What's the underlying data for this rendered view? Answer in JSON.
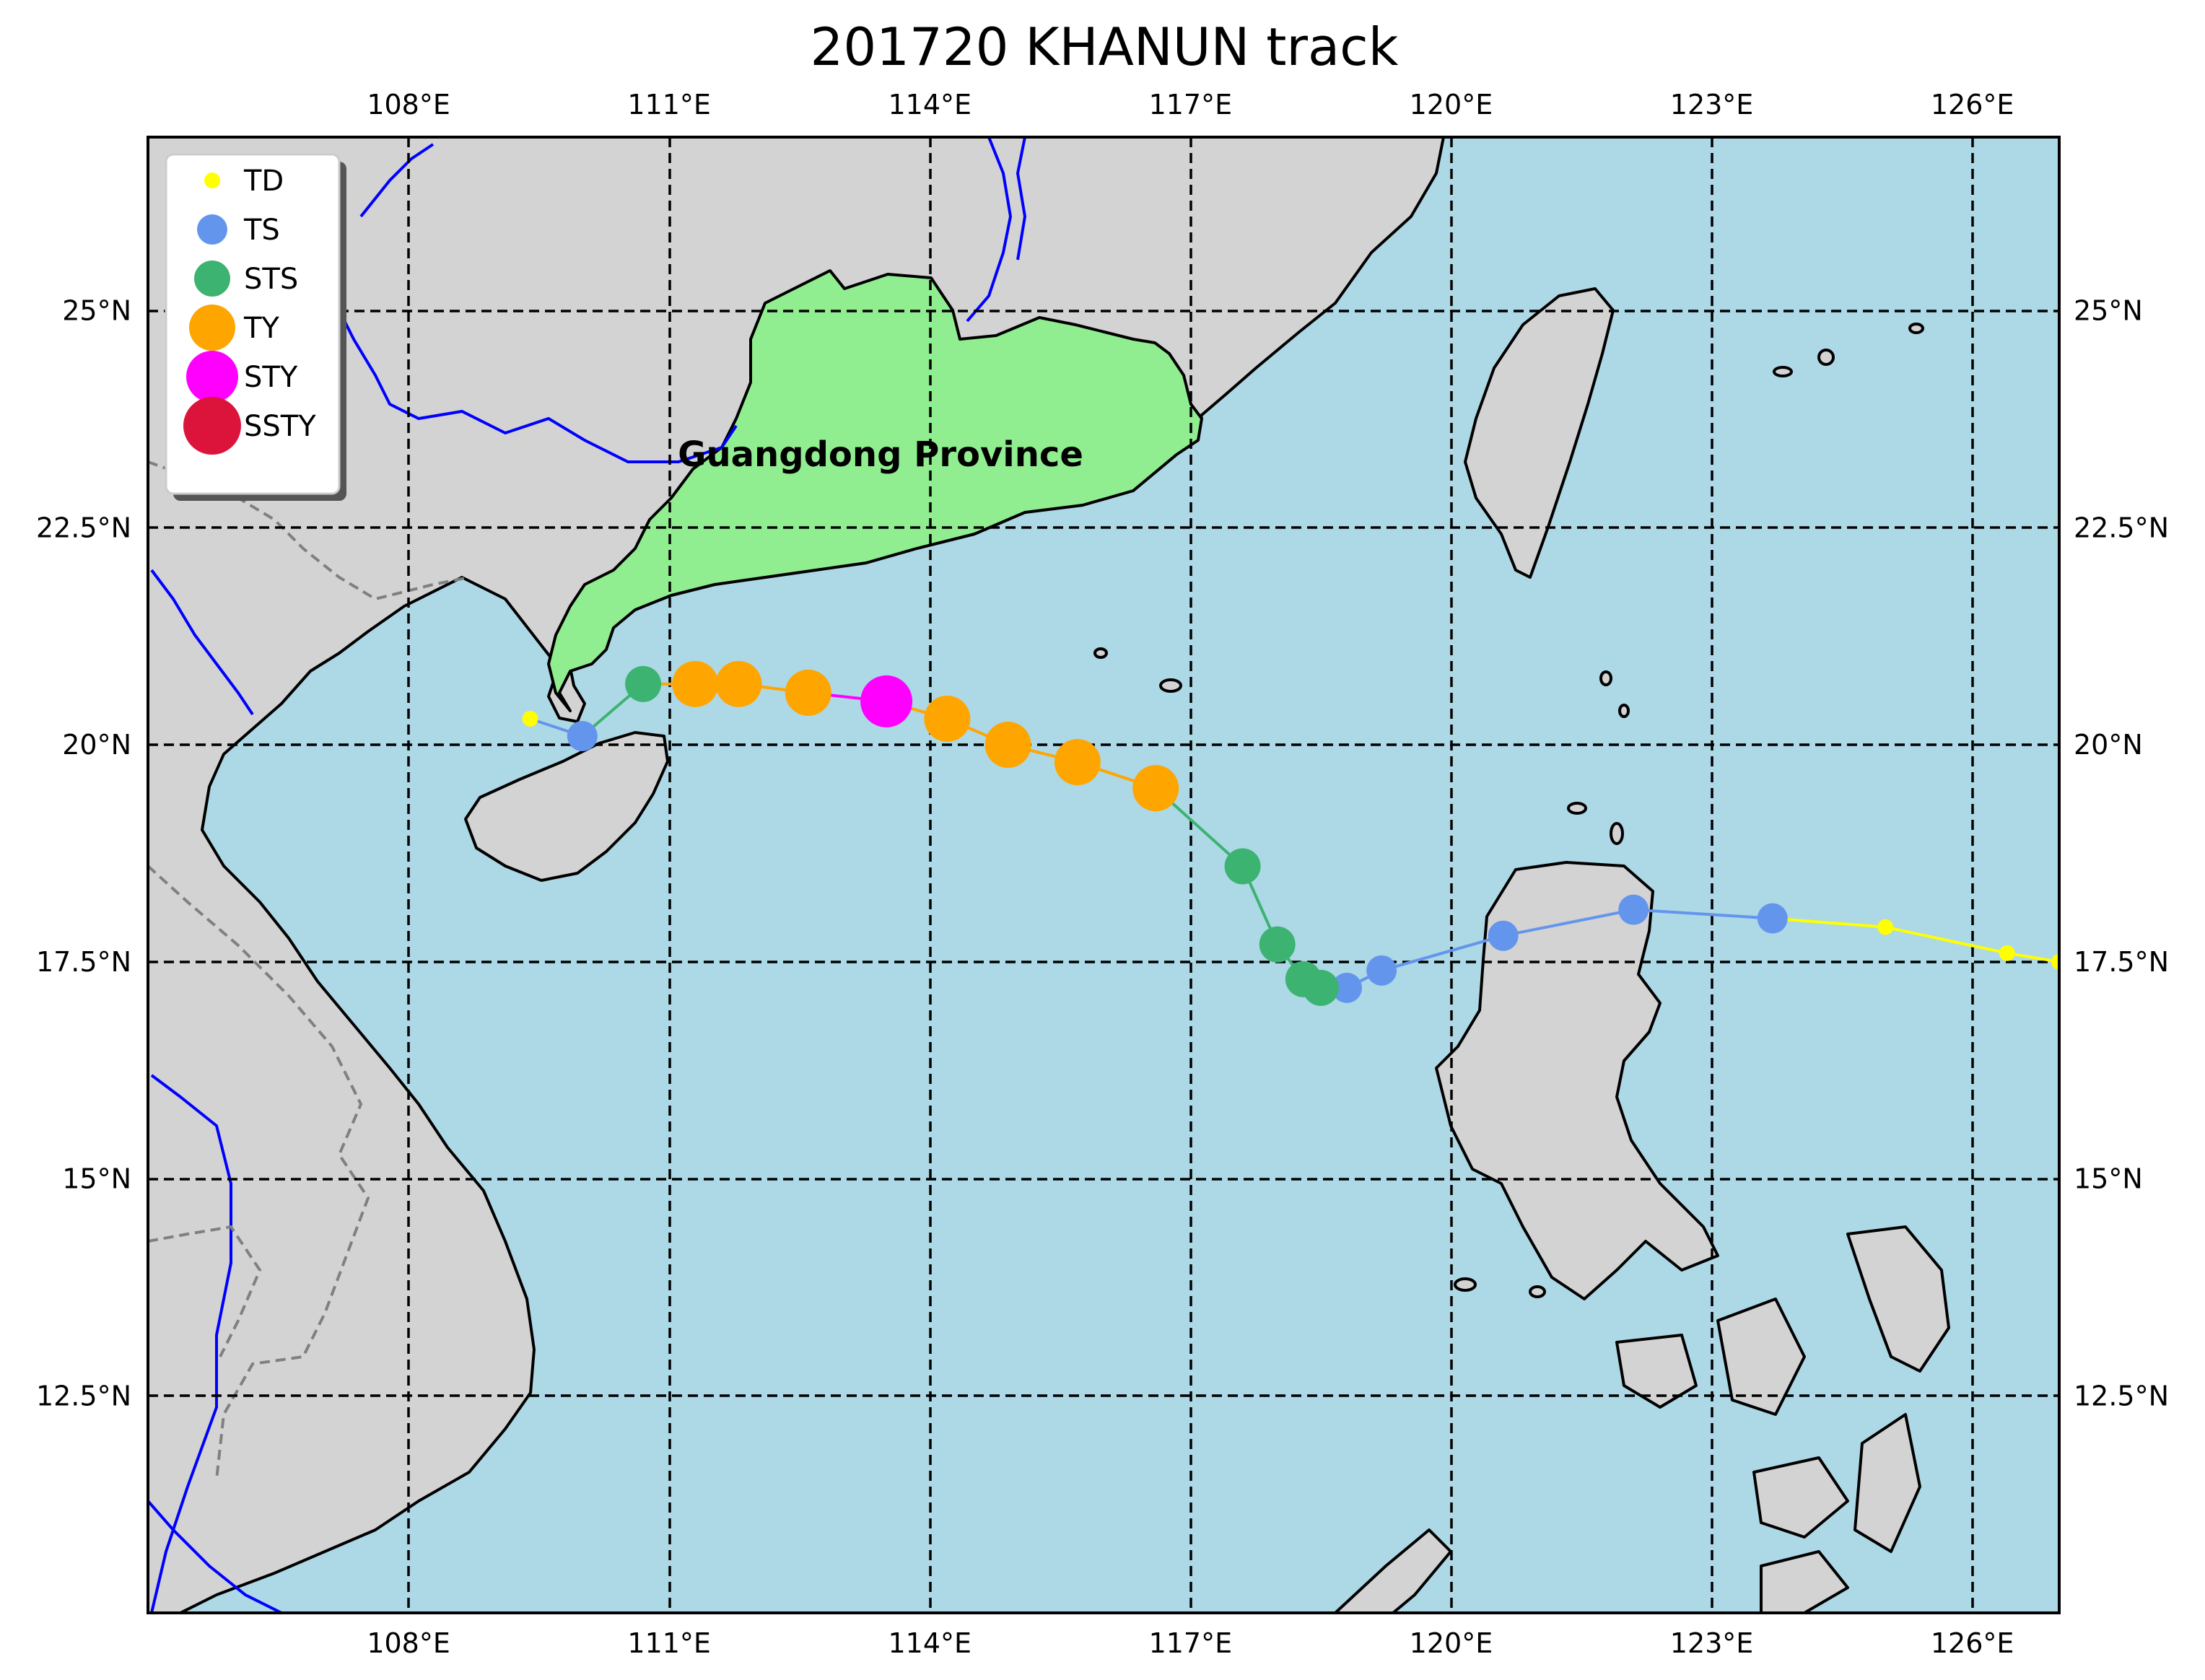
{
  "title": "201720 KHANUN track",
  "map": {
    "lon_range": [
      105,
      127
    ],
    "lat_range": [
      10,
      27
    ],
    "x_ticks": [
      {
        "value": 108,
        "label": "108°E"
      },
      {
        "value": 111,
        "label": "111°E"
      },
      {
        "value": 114,
        "label": "114°E"
      },
      {
        "value": 117,
        "label": "117°E"
      },
      {
        "value": 120,
        "label": "120°E"
      },
      {
        "value": 123,
        "label": "123°E"
      },
      {
        "value": 126,
        "label": "126°E"
      }
    ],
    "y_ticks": [
      {
        "value": 25,
        "label": "25°N"
      },
      {
        "value": 22.5,
        "label": "22.5°N"
      },
      {
        "value": 20,
        "label": "20°N"
      },
      {
        "value": 17.5,
        "label": "17.5°N"
      },
      {
        "value": 15,
        "label": "15°N"
      },
      {
        "value": 12.5,
        "label": "12.5°N"
      }
    ],
    "grid": true,
    "ocean_color": "#add8e6",
    "land_color": "#d3d3d3",
    "highlight_color": "#90ee90",
    "highlight_label": "Guangdong Province"
  },
  "legend": {
    "placement": "top-left",
    "items": [
      {
        "label": "TD",
        "color": "#ffff00"
      },
      {
        "label": "TS",
        "color": "#6495ed"
      },
      {
        "label": "STS",
        "color": "#3cb371"
      },
      {
        "label": "TY",
        "color": "#ffa500"
      },
      {
        "label": "STY",
        "color": "#ff00ff"
      },
      {
        "label": "SSTY",
        "color": "#dc143c"
      }
    ]
  },
  "chart_data": {
    "type": "scatter",
    "title": "201720 KHANUN track",
    "xlabel": "",
    "ylabel": "",
    "xlim": [
      105,
      127
    ],
    "ylim": [
      10,
      27
    ],
    "grid": true,
    "category_colors": {
      "TD": "#ffff00",
      "TS": "#6495ed",
      "STS": "#3cb371",
      "TY": "#ffa500",
      "STY": "#ff00ff",
      "SSTY": "#dc143c"
    },
    "track": [
      {
        "lon": 127.0,
        "lat": 17.5,
        "category": "TD"
      },
      {
        "lon": 126.4,
        "lat": 17.6,
        "category": "TD"
      },
      {
        "lon": 125.0,
        "lat": 17.9,
        "category": "TD"
      },
      {
        "lon": 123.7,
        "lat": 18.0,
        "category": "TS"
      },
      {
        "lon": 122.1,
        "lat": 18.1,
        "category": "TS"
      },
      {
        "lon": 120.6,
        "lat": 17.8,
        "category": "TS"
      },
      {
        "lon": 119.2,
        "lat": 17.4,
        "category": "TS"
      },
      {
        "lon": 118.8,
        "lat": 17.2,
        "category": "TS"
      },
      {
        "lon": 118.5,
        "lat": 17.2,
        "category": "STS"
      },
      {
        "lon": 118.3,
        "lat": 17.3,
        "category": "STS"
      },
      {
        "lon": 118.0,
        "lat": 17.7,
        "category": "STS"
      },
      {
        "lon": 117.6,
        "lat": 18.6,
        "category": "STS"
      },
      {
        "lon": 116.6,
        "lat": 19.5,
        "category": "TY"
      },
      {
        "lon": 115.7,
        "lat": 19.8,
        "category": "TY"
      },
      {
        "lon": 114.9,
        "lat": 20.0,
        "category": "TY"
      },
      {
        "lon": 114.2,
        "lat": 20.3,
        "category": "TY"
      },
      {
        "lon": 113.5,
        "lat": 20.5,
        "category": "STY"
      },
      {
        "lon": 112.6,
        "lat": 20.6,
        "category": "TY"
      },
      {
        "lon": 111.8,
        "lat": 20.7,
        "category": "TY"
      },
      {
        "lon": 111.3,
        "lat": 20.7,
        "category": "TY"
      },
      {
        "lon": 110.7,
        "lat": 20.7,
        "category": "STS"
      },
      {
        "lon": 110.0,
        "lat": 20.1,
        "category": "TS"
      },
      {
        "lon": 109.4,
        "lat": 20.3,
        "category": "TD"
      }
    ]
  }
}
